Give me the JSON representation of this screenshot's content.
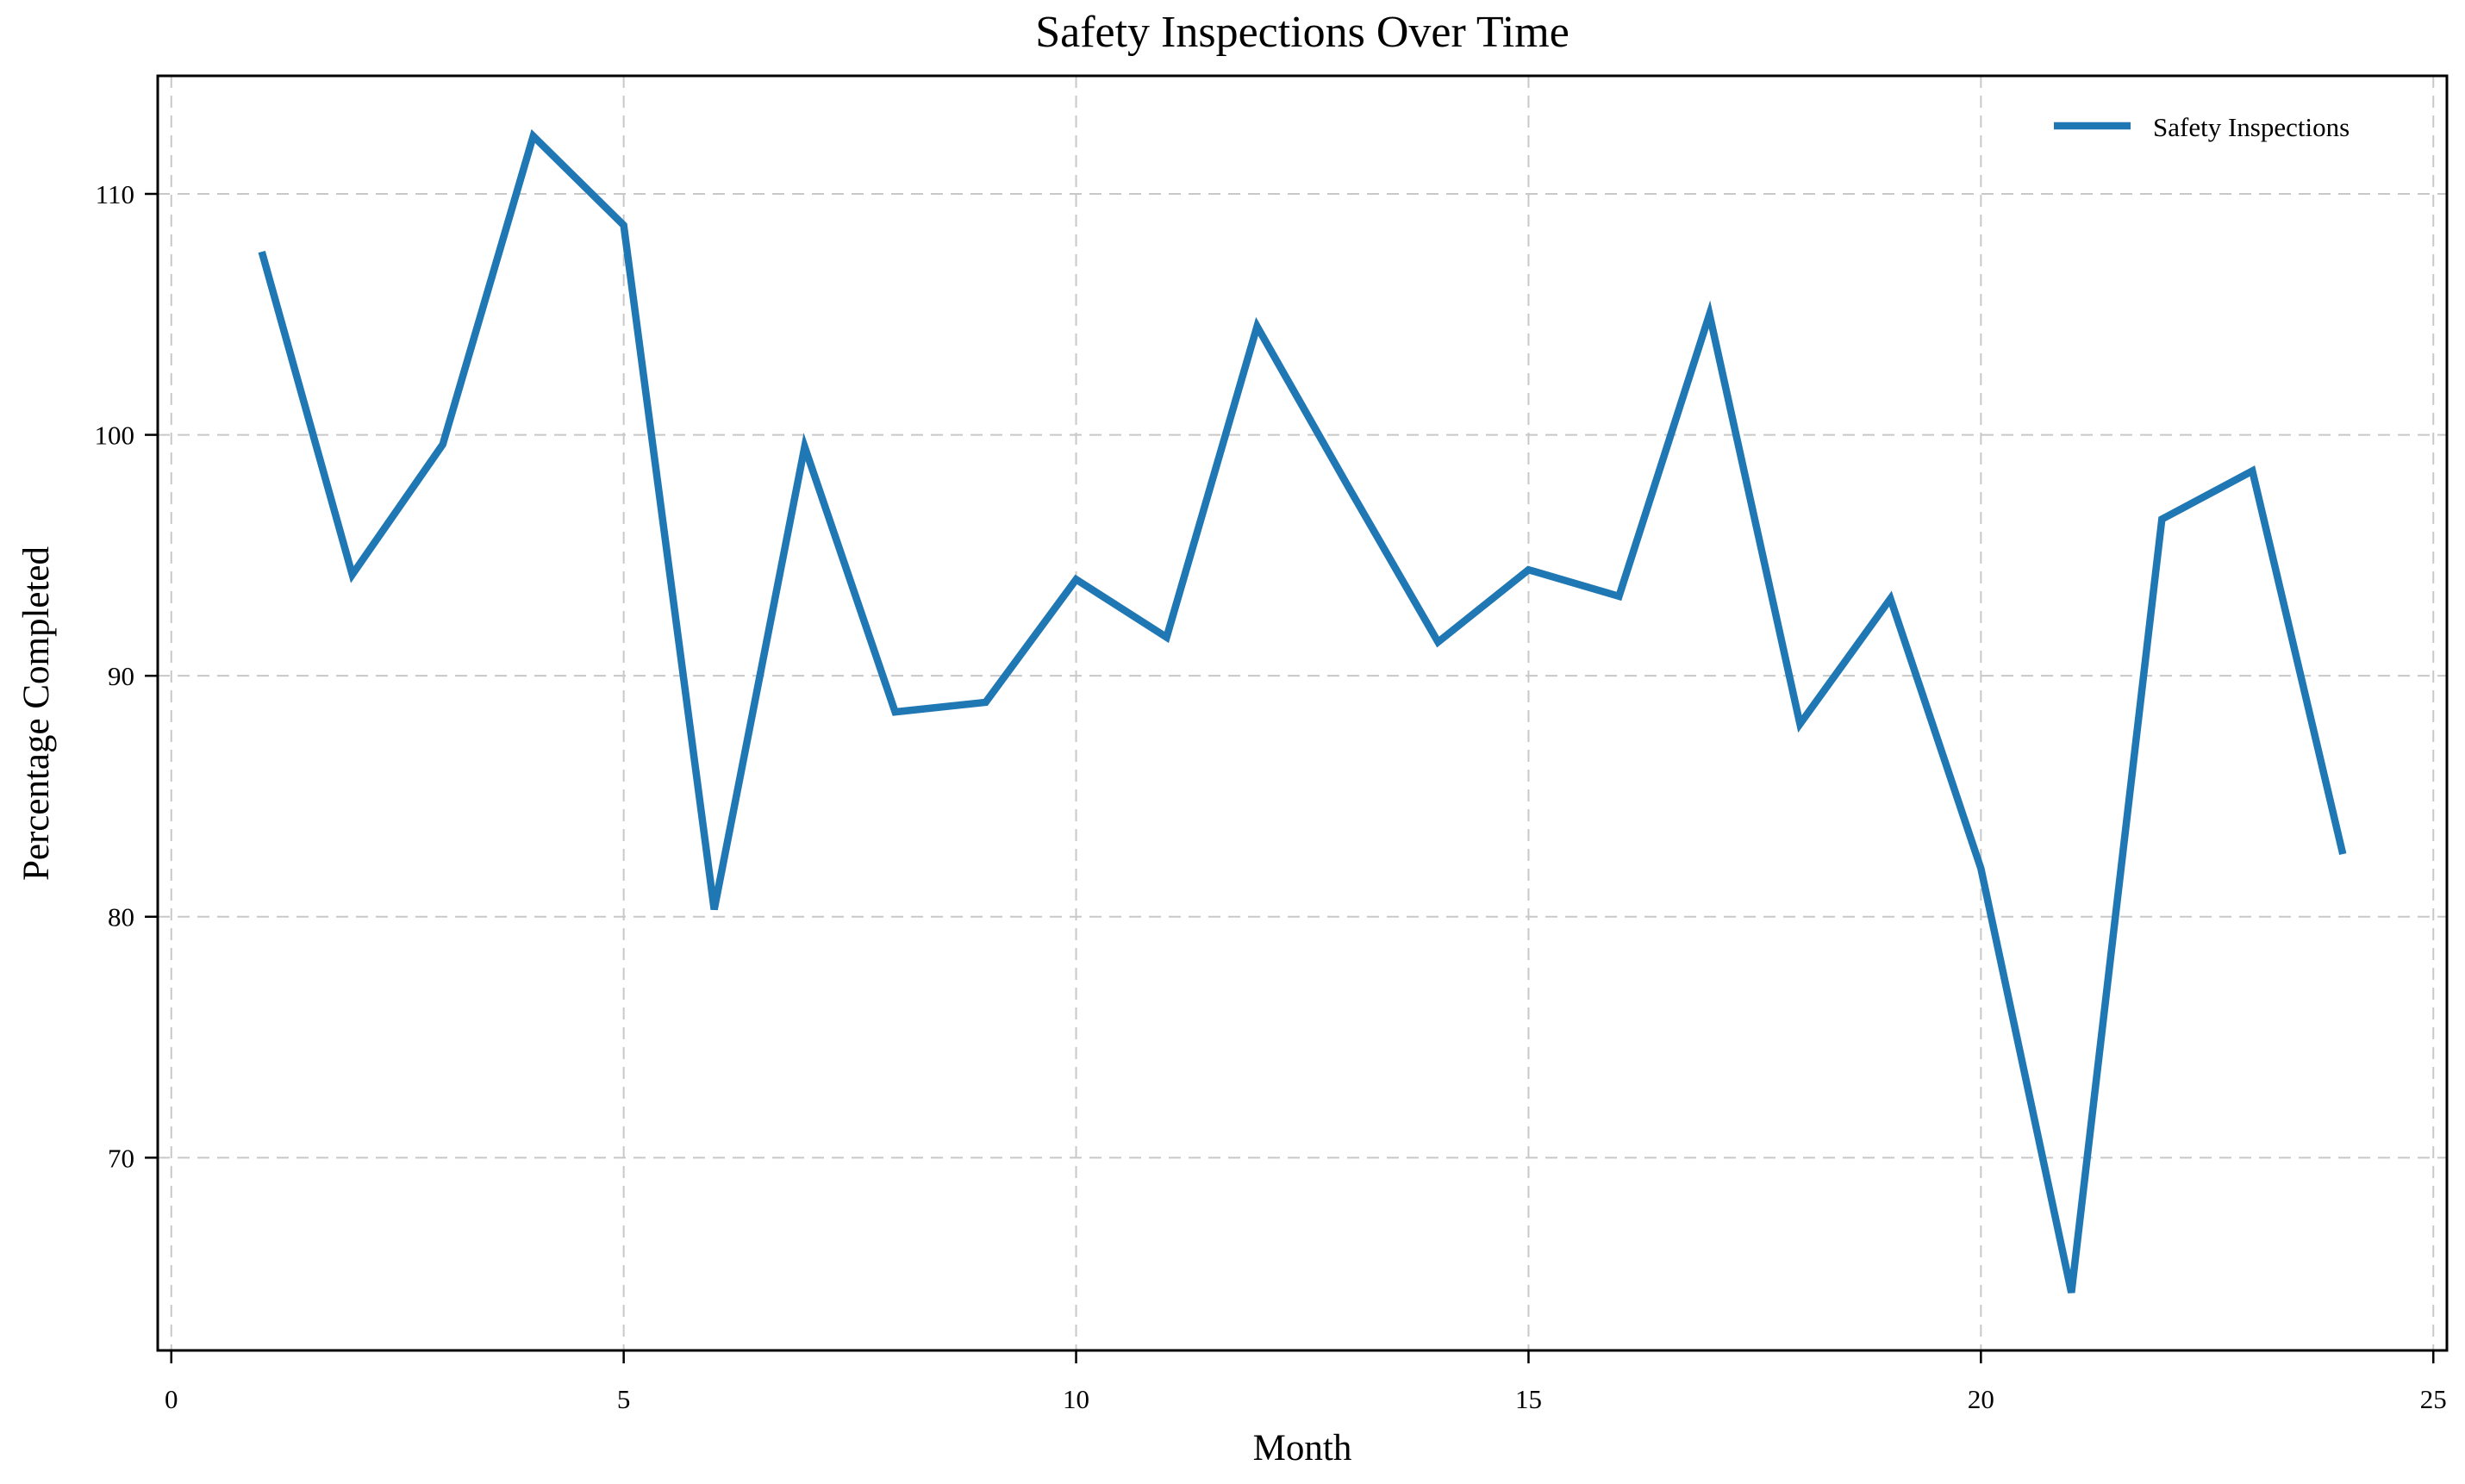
{
  "figure": {
    "background": "#ffffff",
    "text_color": "#000000",
    "spine_color": "#000000"
  },
  "chart_data": {
    "type": "line",
    "title": "Safety Inspections Over Time",
    "xlabel": "Month",
    "ylabel": "Percentage Completed",
    "x": [
      1,
      2,
      3,
      4,
      5,
      6,
      7,
      8,
      9,
      10,
      11,
      12,
      13,
      14,
      15,
      16,
      17,
      18,
      19,
      20,
      21,
      22,
      23,
      24
    ],
    "series": [
      {
        "name": "Safety Inspections",
        "color": "#1f77b4",
        "values": [
          107.6,
          94.2,
          99.6,
          112.4,
          108.7,
          80.3,
          99.5,
          88.5,
          88.9,
          94.0,
          91.6,
          104.5,
          97.9,
          91.4,
          94.4,
          93.3,
          105.0,
          88.0,
          93.2,
          82.0,
          64.4,
          96.5,
          98.5,
          82.6
        ]
      }
    ],
    "xlim": [
      -0.15,
      25.15
    ],
    "ylim": [
      62.0,
      114.9
    ],
    "xticks": [
      0,
      5,
      10,
      15,
      20,
      25
    ],
    "yticks": [
      70,
      80,
      90,
      100,
      110
    ],
    "grid": true,
    "grid_style": "dashed",
    "grid_color": "#c8c8c8",
    "legend_position": "upper right",
    "legend_frame": false
  }
}
